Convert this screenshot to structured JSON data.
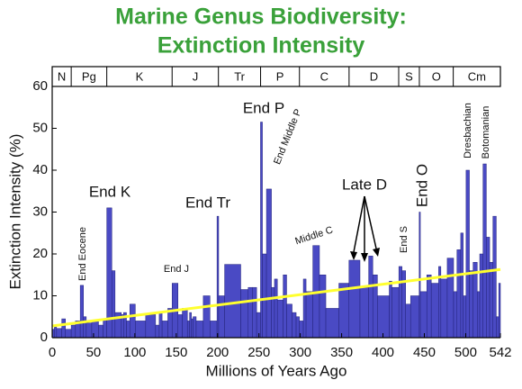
{
  "chart_data": {
    "type": "histogram",
    "title": [
      "Marine Genus Biodiversity:",
      "Extinction Intensity"
    ],
    "xlabel": "Millions of Years Ago",
    "ylabel": "Extinction Intensity (%)",
    "xlim": [
      0,
      542
    ],
    "xticks": [
      0,
      50,
      100,
      150,
      200,
      250,
      300,
      350,
      400,
      450,
      500,
      542
    ],
    "ylim": [
      0,
      60
    ],
    "yticks": [
      0,
      10,
      20,
      30,
      40,
      50,
      60
    ],
    "grid": false,
    "color": "#4a4ac4",
    "bins": [
      0,
      2.6,
      5.3,
      11.6,
      16,
      23,
      28.1,
      33.9,
      37.8,
      41.2,
      47.8,
      56,
      61.6,
      66,
      72.1,
      76,
      83.6,
      86.3,
      89.8,
      93.9,
      100.5,
      113,
      125,
      129.4,
      132.9,
      139.8,
      145,
      152.1,
      157.3,
      163.5,
      166.1,
      168.3,
      170.3,
      174.1,
      182.7,
      190.8,
      199.3,
      201.3,
      208.5,
      228,
      237,
      242,
      247.2,
      251.9,
      254.2,
      259.1,
      265.1,
      268.8,
      272.3,
      279.3,
      283.5,
      290.1,
      295,
      298.9,
      303.7,
      307,
      315.2,
      323.2,
      330.9,
      346.7,
      358.9,
      372.2,
      382.7,
      387.7,
      393.3,
      407.6,
      410.8,
      419.2,
      423,
      427.4,
      433.4,
      443.8,
      445.2,
      453,
      458.4,
      467.3,
      470,
      477.7,
      485.4,
      489.5,
      494,
      497,
      500.5,
      504.5,
      509,
      514,
      517,
      521,
      525,
      529,
      533,
      537,
      540,
      542
    ],
    "values": [
      2,
      2.5,
      2.2,
      4.5,
      2,
      3,
      4,
      12.5,
      5,
      3.5,
      4,
      3,
      4.5,
      31,
      16,
      6,
      5.5,
      6,
      4,
      8,
      4,
      5.5,
      3,
      6,
      4,
      7,
      13,
      5.5,
      7,
      4,
      6,
      4.5,
      5,
      4,
      10,
      4,
      29,
      10,
      17.5,
      11.5,
      12,
      12,
      6,
      51.5,
      20,
      35.5,
      12,
      14,
      9,
      15,
      8,
      6,
      5,
      4,
      14,
      11,
      22,
      15,
      7,
      13,
      18.5,
      12,
      19.5,
      15,
      10,
      13.5,
      12,
      17,
      16,
      8,
      10,
      30,
      11,
      15,
      13,
      17,
      14,
      19,
      11,
      21,
      25,
      10,
      40,
      16,
      18,
      11,
      20,
      41.5,
      24,
      18,
      29,
      5,
      13
    ],
    "trend": {
      "color": "#ffff2e",
      "x": [
        0,
        542
      ],
      "values": [
        2.8,
        16.3
      ]
    },
    "periods": {
      "labels": [
        "N",
        "Pg",
        "K",
        "J",
        "Tr",
        "P",
        "C",
        "D",
        "S",
        "O",
        "Cm"
      ],
      "boundaries": [
        0,
        23,
        66,
        145,
        201,
        252,
        299,
        359,
        419,
        444,
        485,
        542
      ]
    },
    "annotations": [
      "End Eocene",
      "End K",
      "End J",
      "End Tr",
      "End P",
      "End Middle P",
      "Middle C",
      "Late D",
      "End S",
      "End O",
      "Dresbachian",
      "Botomanian"
    ]
  }
}
